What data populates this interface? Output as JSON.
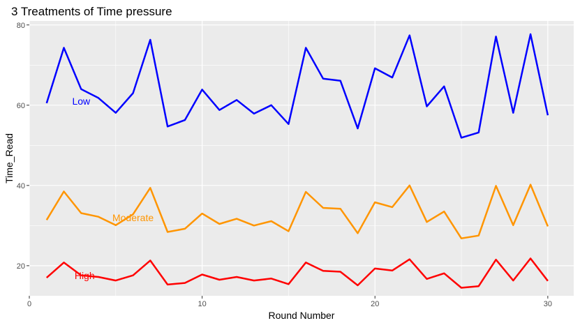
{
  "chart_data": {
    "type": "line",
    "title": "3 Treatments of Time pressure",
    "xlabel": "Round Number",
    "ylabel": "Time_Read",
    "xlim": [
      0,
      31.5
    ],
    "ylim": [
      12.5,
      81
    ],
    "xticks": [
      0,
      10,
      20,
      30
    ],
    "yticks": [
      20,
      40,
      60,
      80
    ],
    "grid": true,
    "legend": "none",
    "x": [
      1,
      2,
      3,
      4,
      5,
      6,
      7,
      8,
      9,
      10,
      11,
      12,
      13,
      14,
      15,
      16,
      17,
      18,
      19,
      20,
      21,
      22,
      23,
      24,
      25,
      26,
      27,
      28,
      29,
      30
    ],
    "series": [
      {
        "name": "Low",
        "color": "#0000ff",
        "label_at": [
          3.0,
          61
        ],
        "values": [
          60.5,
          74.3,
          64.0,
          61.8,
          58.1,
          63.0,
          76.3,
          54.7,
          56.3,
          63.9,
          58.8,
          61.3,
          57.9,
          60.0,
          55.3,
          74.3,
          66.6,
          66.1,
          54.2,
          69.2,
          66.9,
          77.4,
          59.7,
          64.7,
          51.9,
          53.2,
          77.1,
          58.1,
          77.7,
          57.5
        ]
      },
      {
        "name": "Moderate",
        "color": "#ff9500",
        "label_at": [
          6.0,
          32
        ],
        "values": [
          31.4,
          38.5,
          33.1,
          32.2,
          30.1,
          32.8,
          39.4,
          28.4,
          29.2,
          33.0,
          30.4,
          31.7,
          30.0,
          31.1,
          28.6,
          38.4,
          34.4,
          34.2,
          28.1,
          35.8,
          34.6,
          40.0,
          30.9,
          33.5,
          26.8,
          27.5,
          39.9,
          30.1,
          40.2,
          29.8
        ]
      },
      {
        "name": "High",
        "color": "#ff0000",
        "label_at": [
          3.2,
          17.5
        ],
        "values": [
          17.0,
          20.8,
          17.6,
          17.2,
          16.3,
          17.6,
          21.3,
          15.3,
          15.7,
          17.8,
          16.5,
          17.2,
          16.3,
          16.8,
          15.4,
          20.8,
          18.7,
          18.5,
          15.1,
          19.3,
          18.8,
          21.6,
          16.7,
          18.1,
          14.5,
          14.9,
          21.5,
          16.3,
          21.8,
          16.2
        ]
      }
    ]
  }
}
